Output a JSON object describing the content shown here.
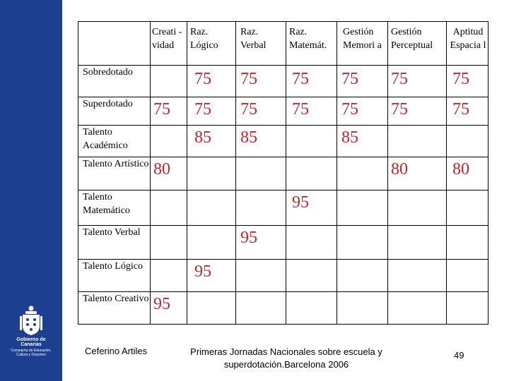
{
  "sidebar": {
    "org": "Gobierno de Canarias",
    "dept": "Consejería de Educación, Cultura y Deportes",
    "color": "#1c3f8f"
  },
  "table": {
    "columns": [
      "Creati -vidad",
      "Raz. Lógico",
      "Raz. Verbal",
      "Raz. Matemát.",
      "Gestión Memori a",
      "Gestión Perceptual",
      "Aptitud Espacia l"
    ],
    "rows": [
      {
        "label": "Sobredotado",
        "values": [
          "",
          "75",
          "75",
          "75",
          "75",
          "75",
          "75"
        ]
      },
      {
        "label": "Superdotado",
        "values": [
          "75",
          "75",
          "75",
          "75",
          "75",
          "75",
          "75"
        ]
      },
      {
        "label": "Talento Académico",
        "values": [
          "",
          "85",
          "85",
          "",
          "85",
          "",
          ""
        ]
      },
      {
        "label": "Talento Artístico",
        "values": [
          "80",
          "",
          "",
          "",
          "",
          "80",
          "80"
        ]
      },
      {
        "label": "Talento Matemático",
        "values": [
          "",
          "",
          "",
          "95",
          "",
          "",
          ""
        ]
      },
      {
        "label": "Talento Verbal",
        "values": [
          "",
          "",
          "95",
          "",
          "",
          "",
          ""
        ]
      },
      {
        "label": "Talento Lógico",
        "values": [
          "",
          "95",
          "",
          "",
          "",
          "",
          ""
        ]
      },
      {
        "label": "Talento Creativo",
        "values": [
          "95",
          "",
          "",
          "",
          "",
          "",
          ""
        ]
      }
    ],
    "value_color": "#c0262c"
  },
  "footer": {
    "author": "Ceferino Artiles",
    "event_line1": "Primeras Jornadas Nacionales  sobre escuela y",
    "event_line2": "superdotación.Barcelona 2006",
    "page": "49"
  }
}
